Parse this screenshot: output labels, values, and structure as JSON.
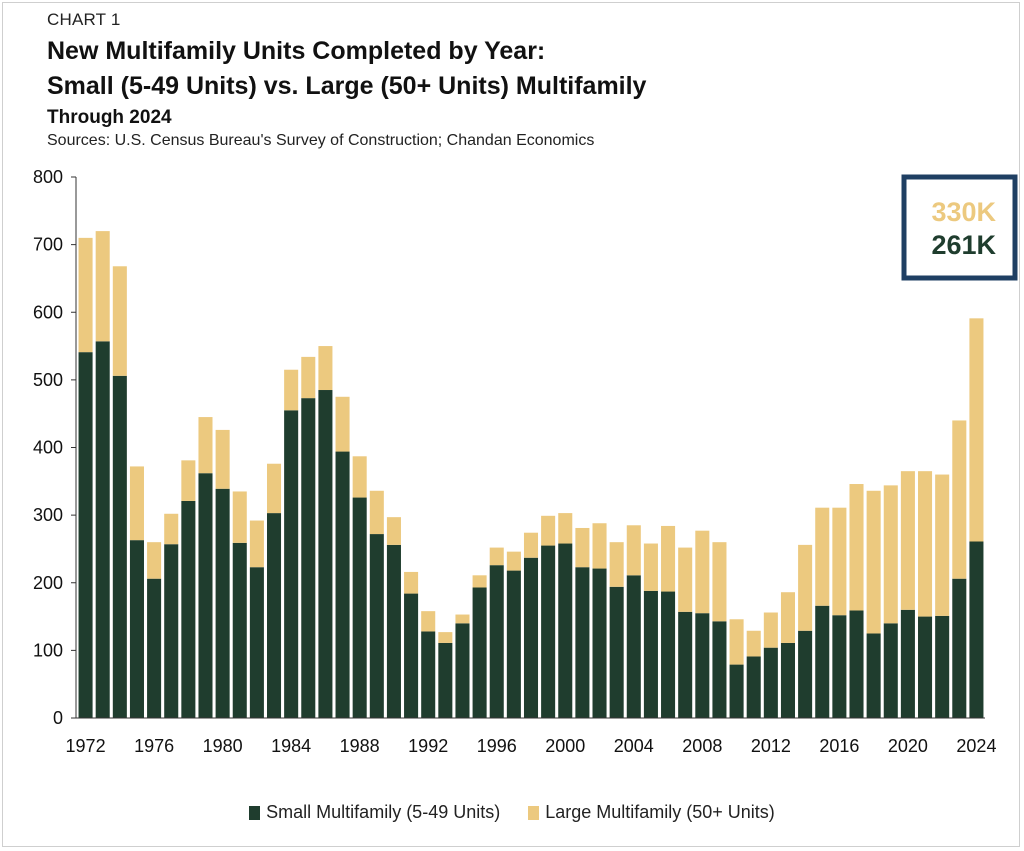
{
  "header": {
    "chart_label": "CHART 1",
    "title_line1": "New Multifamily Units Completed by Year:",
    "title_line2": "Small (5-49 Units) vs. Large (50+ Units) Multifamily",
    "subtitle": "Through 2024",
    "sources": "Sources: U.S. Census Bureau's Survey of Construction; Chandan Economics"
  },
  "colors": {
    "small": "#1f3d2e",
    "large": "#ecc97f",
    "callout_border": "#1f3f63"
  },
  "callout": {
    "large_value": "330K",
    "small_value": "261K"
  },
  "legend": {
    "small_label": "Small Multifamily (5-49 Units)",
    "large_label": "Large Multifamily (50+ Units)"
  },
  "chart_data": {
    "type": "bar",
    "stacked": true,
    "ylim": [
      0,
      800
    ],
    "yticks": [
      0,
      100,
      200,
      300,
      400,
      500,
      600,
      700,
      800
    ],
    "xtick_labels": [
      "1972",
      "1976",
      "1980",
      "1984",
      "1988",
      "1992",
      "1996",
      "2000",
      "2004",
      "2008",
      "2012",
      "2016",
      "2020",
      "2024"
    ],
    "categories": [
      1972,
      1973,
      1974,
      1975,
      1976,
      1977,
      1978,
      1979,
      1980,
      1981,
      1982,
      1983,
      1984,
      1985,
      1986,
      1987,
      1988,
      1989,
      1990,
      1991,
      1992,
      1993,
      1994,
      1995,
      1996,
      1997,
      1998,
      1999,
      2000,
      2001,
      2002,
      2003,
      2004,
      2005,
      2006,
      2007,
      2008,
      2009,
      2010,
      2011,
      2012,
      2013,
      2014,
      2015,
      2016,
      2017,
      2018,
      2019,
      2020,
      2021,
      2022,
      2023,
      2024
    ],
    "series": [
      {
        "name": "Small Multifamily (5-49 Units)",
        "values": [
          541,
          557,
          506,
          263,
          206,
          257,
          321,
          362,
          339,
          259,
          223,
          303,
          455,
          473,
          485,
          394,
          326,
          272,
          256,
          184,
          128,
          111,
          140,
          193,
          226,
          218,
          237,
          255,
          258,
          223,
          221,
          194,
          211,
          188,
          187,
          157,
          155,
          143,
          79,
          91,
          104,
          111,
          129,
          166,
          152,
          159,
          125,
          140,
          160,
          150,
          151,
          206,
          261
        ]
      },
      {
        "name": "Large Multifamily (50+ Units)",
        "values": [
          169,
          163,
          162,
          109,
          54,
          45,
          60,
          83,
          87,
          76,
          69,
          73,
          60,
          61,
          65,
          81,
          61,
          64,
          41,
          32,
          30,
          16,
          13,
          18,
          26,
          28,
          37,
          44,
          45,
          58,
          67,
          66,
          74,
          70,
          97,
          95,
          122,
          117,
          67,
          38,
          52,
          75,
          127,
          145,
          159,
          187,
          211,
          204,
          205,
          215,
          209,
          234,
          330
        ]
      }
    ]
  }
}
